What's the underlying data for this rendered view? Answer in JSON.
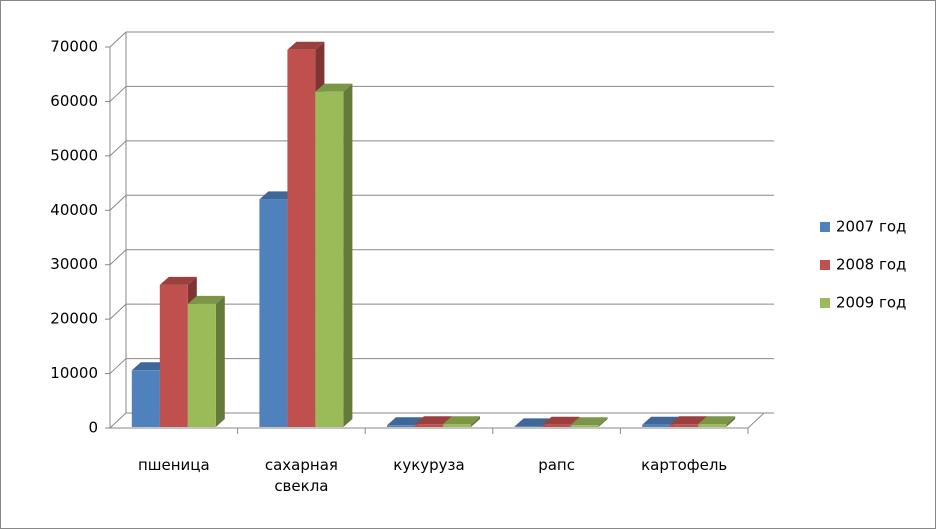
{
  "chart_data": {
    "type": "bar3d",
    "categories": [
      "пшеница",
      "сахарная свекла",
      "кукуруза",
      "рапс",
      "картофель"
    ],
    "series": [
      {
        "name": "2007 год",
        "color": "#4f81bd",
        "values": [
          10600,
          42000,
          500,
          300,
          600
        ]
      },
      {
        "name": "2008 год",
        "color": "#c0504d",
        "values": [
          26300,
          69500,
          700,
          600,
          700
        ]
      },
      {
        "name": "2009 год",
        "color": "#9bbb59",
        "values": [
          22800,
          61800,
          700,
          500,
          700
        ]
      }
    ],
    "ylim": [
      0,
      70000
    ],
    "yticks": [
      0,
      10000,
      20000,
      30000,
      40000,
      50000,
      60000,
      70000
    ],
    "grid": true,
    "legend": "right"
  }
}
